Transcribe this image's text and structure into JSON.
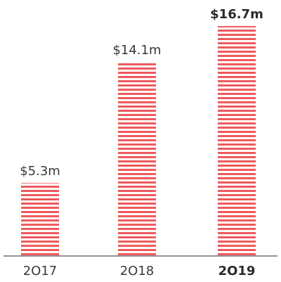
{
  "chart_data": {
    "type": "bar",
    "categories": [
      "2017",
      "2018",
      "2019"
    ],
    "category_labels": [
      "2O17",
      "2O18",
      "2O19"
    ],
    "values": [
      5.3,
      14.1,
      16.7
    ],
    "value_labels": [
      "$5.3m",
      "$14.1m",
      "$16.7m"
    ],
    "highlight_index": 2,
    "title": "",
    "xlabel": "",
    "ylabel": "",
    "ylim": [
      0,
      16.7
    ],
    "grid": false,
    "bar_fill": "striped",
    "colors": {
      "bar_stripe": "#ee5a5d",
      "baseline": "#555555",
      "label_text": "#3a3a3a"
    }
  }
}
